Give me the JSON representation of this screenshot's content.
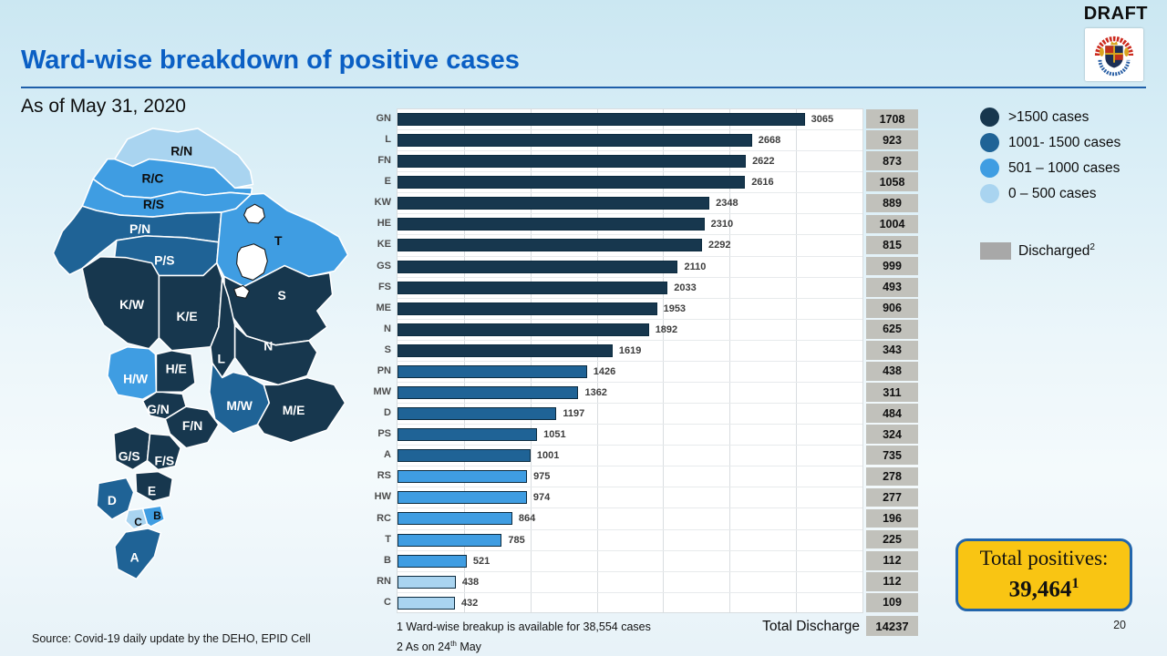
{
  "header": {
    "draft_label": "DRAFT",
    "title": "Ward-wise breakdown of positive cases",
    "as_of_date": "As of May 31, 2020"
  },
  "chart_data": {
    "type": "bar",
    "orientation": "horizontal",
    "title": "Ward-wise breakdown of positive cases",
    "categories": [
      "GN",
      "L",
      "FN",
      "E",
      "KW",
      "HE",
      "KE",
      "GS",
      "FS",
      "ME",
      "N",
      "S",
      "PN",
      "MW",
      "D",
      "PS",
      "A",
      "RS",
      "HW",
      "RC",
      "T",
      "B",
      "RN",
      "C"
    ],
    "series": [
      {
        "name": "Positive cases",
        "values": [
          3065,
          2668,
          2622,
          2616,
          2348,
          2310,
          2292,
          2110,
          2033,
          1953,
          1892,
          1619,
          1426,
          1362,
          1197,
          1051,
          1001,
          975,
          974,
          864,
          785,
          521,
          438,
          432
        ]
      },
      {
        "name": "Discharged",
        "values": [
          1708,
          923,
          873,
          1058,
          889,
          1004,
          815,
          999,
          493,
          906,
          625,
          343,
          438,
          311,
          484,
          324,
          735,
          278,
          277,
          196,
          225,
          112,
          112,
          109
        ]
      }
    ],
    "xlim": [
      0,
      3500
    ],
    "gridline_interval": 500,
    "grid": "on",
    "legend_position": "right"
  },
  "discharge_total": {
    "label": "Total Discharge",
    "value": "14237"
  },
  "legend": {
    "items": [
      {
        "label": ">1500 cases",
        "color": "#17374e"
      },
      {
        "label": "1001- 1500 cases",
        "color": "#1f6396"
      },
      {
        "label": "501 – 1000 cases",
        "color": "#3f9de2"
      },
      {
        "label": "0 – 500 cases",
        "color": "#a9d4f0"
      }
    ],
    "discharged": {
      "label": "Discharged",
      "superscript": "2",
      "color": "#a8a8a8"
    }
  },
  "map": {
    "wards": [
      {
        "id": "RN",
        "label": "R/N",
        "cases": 438
      },
      {
        "id": "RC",
        "label": "R/C",
        "cases": 864
      },
      {
        "id": "RS",
        "label": "R/S",
        "cases": 975
      },
      {
        "id": "PN",
        "label": "P/N",
        "cases": 1426
      },
      {
        "id": "PS",
        "label": "P/S",
        "cases": 1051
      },
      {
        "id": "T",
        "label": "T",
        "cases": 785
      },
      {
        "id": "S",
        "label": "S",
        "cases": 1619
      },
      {
        "id": "KW",
        "label": "K/W",
        "cases": 2348
      },
      {
        "id": "KE",
        "label": "K/E",
        "cases": 2292
      },
      {
        "id": "L",
        "label": "L",
        "cases": 2668
      },
      {
        "id": "N",
        "label": "N",
        "cases": 1892
      },
      {
        "id": "HW",
        "label": "H/W",
        "cases": 974
      },
      {
        "id": "HE",
        "label": "H/E",
        "cases": 2310
      },
      {
        "id": "MW",
        "label": "M/W",
        "cases": 1362
      },
      {
        "id": "ME",
        "label": "M/E",
        "cases": 1953
      },
      {
        "id": "GN",
        "label": "G/N",
        "cases": 3065
      },
      {
        "id": "FN",
        "label": "F/N",
        "cases": 2622
      },
      {
        "id": "GS",
        "label": "G/S",
        "cases": 2110
      },
      {
        "id": "FS",
        "label": "F/S",
        "cases": 2033
      },
      {
        "id": "E",
        "label": "E",
        "cases": 2616
      },
      {
        "id": "D",
        "label": "D",
        "cases": 1197
      },
      {
        "id": "C",
        "label": "C",
        "cases": 432
      },
      {
        "id": "B",
        "label": "B",
        "cases": 521
      },
      {
        "id": "A",
        "label": "A",
        "cases": 1001
      }
    ]
  },
  "total_positives": {
    "label": "Total positives:",
    "value": "39,464",
    "superscript": "1"
  },
  "footnotes": {
    "note1": "1 Ward-wise breakup is available for 38,554 cases",
    "note2_prefix": "2 As on 24",
    "note2_sup": "th",
    "note2_suffix": " May"
  },
  "source": "Source: Covid-19 daily update by the DEHO, EPID Cell",
  "page_number": "20",
  "colors": {
    "cat_gt1500": "#17374e",
    "cat_1001_1500": "#1f6396",
    "cat_501_1000": "#3f9de2",
    "cat_0_500": "#a9d4f0",
    "discharged_box": "#c1c1bb",
    "accent_blue": "#1e5fa9",
    "title_blue": "#0a5fc4",
    "total_box_yellow": "#f9c513"
  }
}
